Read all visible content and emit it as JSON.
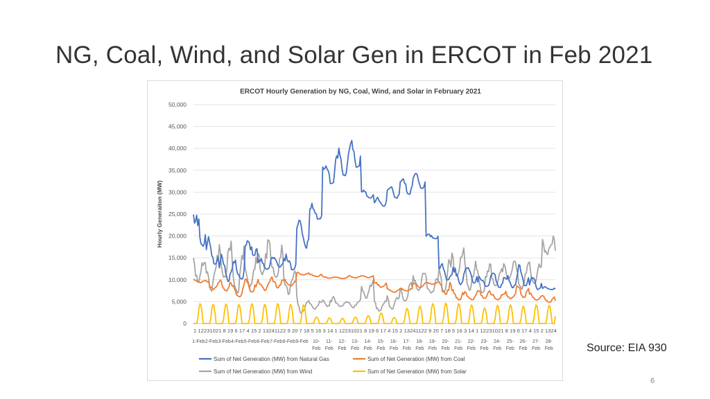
{
  "slide": {
    "title": "NG, Coal, Wind, and Solar Gen in ERCOT in Feb 2021",
    "source": "Source: EIA 930",
    "page_number": "6"
  },
  "chart_data": {
    "type": "line",
    "title": "ERCOT Hourly Generation by NG, Coal, Wind, and Solar in February 2021",
    "ylabel": "Hourly Generaiton (MW)",
    "xlabel": "",
    "ylim": [
      0,
      50000
    ],
    "yticks": [
      0,
      5000,
      10000,
      15000,
      20000,
      25000,
      30000,
      35000,
      40000,
      45000,
      50000
    ],
    "ytick_labels": [
      "0",
      "5,000",
      "10,000",
      "15,000",
      "20,000",
      "25,000",
      "30,000",
      "35,000",
      "40,000",
      "45,000",
      "50,000"
    ],
    "hour_label_row": "1 12231021 8 19 6 17 4 15 2 13241122 9 20 7 18 5 16 3 14 1 12231021 8 19 6 17 4 15 2 13241122 9 20 7 18 5 16 3 14 1 12231021 8 19 6 17 4 15 2 1324",
    "day_labels": [
      [
        "1-Feb"
      ],
      [
        "2-Feb"
      ],
      [
        "3-Feb"
      ],
      [
        "4-Feb"
      ],
      [
        "5-Feb"
      ],
      [
        "6-Feb"
      ],
      [
        "7-Feb"
      ],
      [
        "8-Feb"
      ],
      [
        "9-Feb"
      ],
      [
        "10-",
        "Feb"
      ],
      [
        "11-",
        "Feb"
      ],
      [
        "12-",
        "Feb"
      ],
      [
        "13-",
        "Feb"
      ],
      [
        "14-",
        "Feb"
      ],
      [
        "15-",
        "Feb"
      ],
      [
        "16-",
        "Feb"
      ],
      [
        "17-",
        "Feb"
      ],
      [
        "18-",
        "Feb"
      ],
      [
        "19-",
        "Feb"
      ],
      [
        "20-",
        "Feb"
      ],
      [
        "21-",
        "Feb"
      ],
      [
        "22-",
        "Feb"
      ],
      [
        "23-",
        "Feb"
      ],
      [
        "24-",
        "Feb"
      ],
      [
        "25-",
        "Feb"
      ],
      [
        "26-",
        "Feb"
      ],
      [
        "27-",
        "Feb"
      ],
      [
        "28-",
        "Feb"
      ]
    ],
    "grid": true,
    "legend_position": "bottom",
    "x": [
      1,
      2,
      3,
      4,
      5,
      6,
      7,
      8,
      9,
      10,
      11,
      12,
      13,
      14,
      15,
      16,
      17,
      18,
      19,
      20,
      21,
      22,
      23,
      24,
      25,
      26,
      27,
      28
    ],
    "x_note": "",
    "series": [
      {
        "name": "Sum of Net Generation (MW) from Natural Gas",
        "color": "#4472c4",
        "values": [
          26700,
          21000,
          16000,
          15000,
          20000,
          15000,
          15500,
          16000,
          26000,
          27500,
          37500,
          40500,
          43500,
          30500,
          29000,
          32000,
          34000,
          35000,
          20500,
          14000,
          13000,
          14500,
          11000,
          12000,
          11500,
          13500,
          11000,
          8500
        ],
        "min": [
          14500,
          11000,
          7500,
          8500,
          14000,
          11500,
          12000,
          11000,
          14000,
          22500,
          30000,
          31500,
          33000,
          28000,
          26000,
          27500,
          28000,
          29500,
          19000,
          8500,
          7500,
          7500,
          7500,
          7000,
          7000,
          7000,
          6500,
          7500
        ]
      },
      {
        "name": "Sum of Net Generation (MW) from Coal",
        "color": "#ed7d31",
        "values": [
          10300,
          10000,
          10200,
          9500,
          10600,
          10300,
          11200,
          10300,
          11800,
          11400,
          10800,
          10700,
          11000,
          11000,
          9500,
          8000,
          8200,
          9500,
          9500,
          10000,
          7800,
          7300,
          7800,
          7200,
          7500,
          9500,
          7000,
          6500
        ],
        "min": [
          9000,
          7000,
          6500,
          5000,
          6000,
          6500,
          7000,
          8000,
          10800,
          10500,
          10200,
          10100,
          10200,
          10300,
          7800,
          6800,
          7200,
          7800,
          8800,
          5500,
          4500,
          4800,
          5000,
          4800,
          5000,
          4700,
          4800,
          4300
        ]
      },
      {
        "name": "Sum of Net Generation (MW) from Wind",
        "color": "#a5a5a5",
        "values": [
          16500,
          16000,
          20000,
          18500,
          17000,
          22000,
          18000,
          13000,
          6500,
          5500,
          6500,
          5200,
          5500,
          10500,
          5500,
          7000,
          10000,
          12000,
          11000,
          16000,
          18500,
          15500,
          14500,
          14000,
          16000,
          14500,
          15000,
          20500
        ],
        "min": [
          7000,
          4500,
          7000,
          3000,
          5000,
          7500,
          8000,
          4500,
          1000,
          2500,
          3000,
          3500,
          3000,
          4000,
          2000,
          2000,
          3500,
          6000,
          5500,
          4000,
          8500,
          5000,
          4500,
          6500,
          8000,
          5500,
          7000,
          14000
        ]
      },
      {
        "name": "Sum of Net Generation (MW) from Solar",
        "color": "#ffc000",
        "values": [
          4600,
          4400,
          4500,
          4400,
          4600,
          4400,
          4600,
          4400,
          4300,
          1500,
          1300,
          1200,
          1500,
          1800,
          2400,
          1400,
          3500,
          4000,
          4600,
          4700,
          4600,
          4300,
          3600,
          4200,
          4300,
          4000,
          4300,
          4200
        ],
        "min": [
          0,
          0,
          0,
          0,
          0,
          0,
          0,
          0,
          0,
          0,
          0,
          0,
          0,
          0,
          0,
          0,
          0,
          0,
          0,
          0,
          0,
          0,
          0,
          0,
          0,
          0,
          0,
          0
        ]
      }
    ]
  }
}
